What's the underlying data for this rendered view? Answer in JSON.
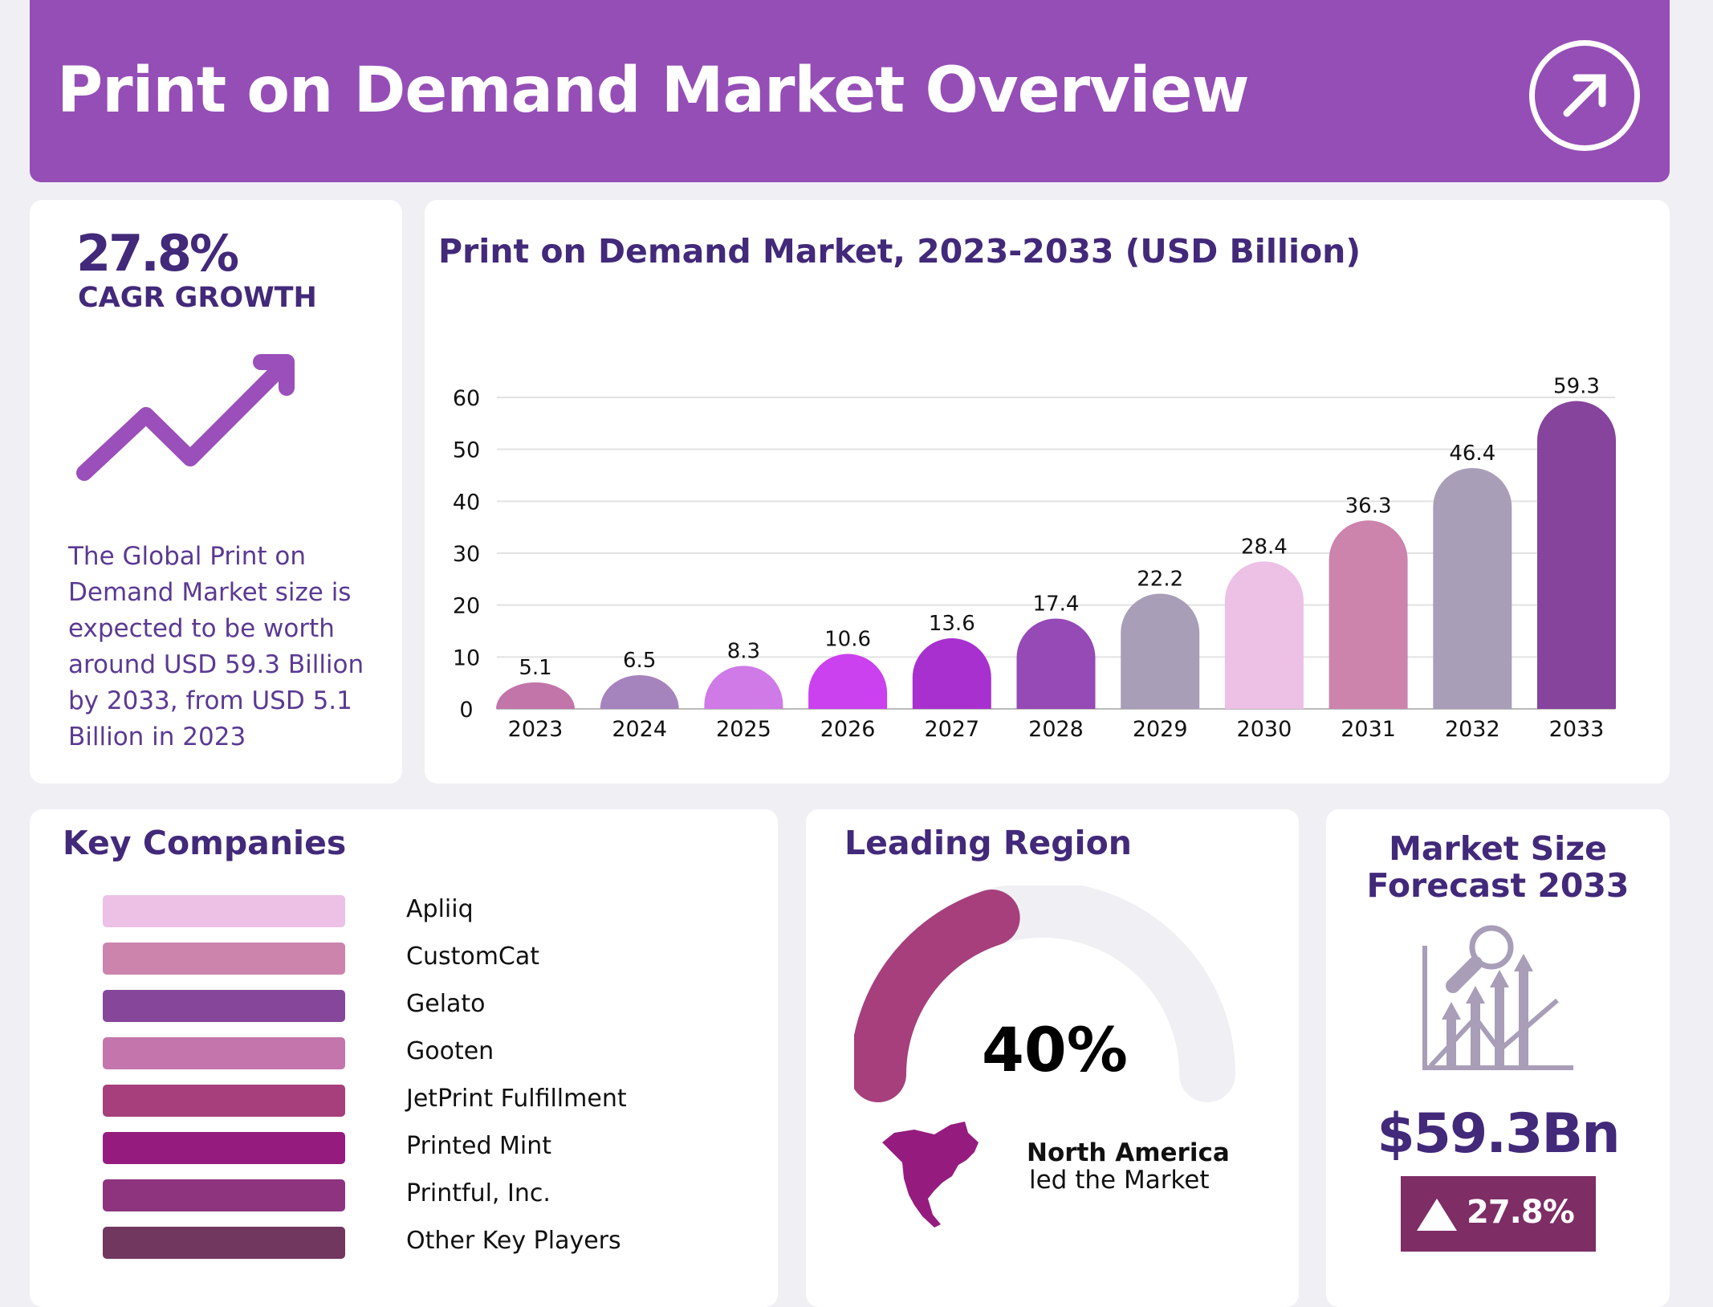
{
  "header": {
    "title": "Print on Demand Market Overview",
    "icon": "arrow-up-right-icon",
    "bg": "#954eb6"
  },
  "cagr": {
    "value": "27.8%",
    "label": "CAGR GROWTH",
    "icon": "trend-up-arrow-icon",
    "description": "The Global Print on Demand Market size is expected to be worth around USD 59.3 Billion by 2033, from USD 5.1 Billion in 2023"
  },
  "chart_data": {
    "type": "bar",
    "title": "Print on Demand Market, 2023-2033 (USD Billion)",
    "categories": [
      "2023",
      "2024",
      "2025",
      "2026",
      "2027",
      "2028",
      "2029",
      "2030",
      "2031",
      "2032",
      "2033"
    ],
    "values": [
      5.1,
      6.5,
      8.3,
      10.6,
      13.6,
      17.4,
      22.2,
      28.4,
      36.3,
      46.4,
      59.3
    ],
    "value_labels": [
      "5.1",
      "6.5",
      "8.3",
      "10.6",
      "13.6",
      "17.4",
      "22.2",
      "28.4",
      "36.3",
      "46.4",
      "59.3"
    ],
    "colors": [
      "#c275a9",
      "#a583bd",
      "#cf7ae6",
      "#cb40ef",
      "#a830cf",
      "#954ab6",
      "#a89eb8",
      "#edc0e5",
      "#cc84ad",
      "#a89eb8",
      "#86449c"
    ],
    "yticks": [
      "0",
      "10",
      "20",
      "30",
      "40",
      "50",
      "60"
    ],
    "ylim": [
      0,
      60
    ],
    "grid": true,
    "xlabel": "",
    "ylabel": ""
  },
  "companies": {
    "title": "Key Companies",
    "items": [
      {
        "name": "Apliiq",
        "color": "#edc0e5"
      },
      {
        "name": "CustomCat",
        "color": "#cc84ad"
      },
      {
        "name": "Gelato",
        "color": "#86479b"
      },
      {
        "name": "Gooten",
        "color": "#c475ab"
      },
      {
        "name": "JetPrint Fulfillment",
        "color": "#a63f7c"
      },
      {
        "name": "Printed Mint",
        "color": "#951c7e"
      },
      {
        "name": "Printful, Inc.",
        "color": "#8e347f"
      },
      {
        "name": "Other Key Players",
        "color": "#72375f"
      }
    ]
  },
  "region": {
    "title": "Leading Region",
    "percent": 40,
    "percent_label": "40%",
    "name": "North America",
    "sub": "led the Market",
    "icon": "north-america-map-icon",
    "color": "#a63f7c"
  },
  "forecast": {
    "title_line1": "Market Size",
    "title_line2": "Forecast 2033",
    "icon": "chart-magnifier-icon",
    "value": "$59.3Bn",
    "badge": "27.8%",
    "badge_icon": "triangle-up-icon",
    "badge_color": "#7e2d65"
  }
}
